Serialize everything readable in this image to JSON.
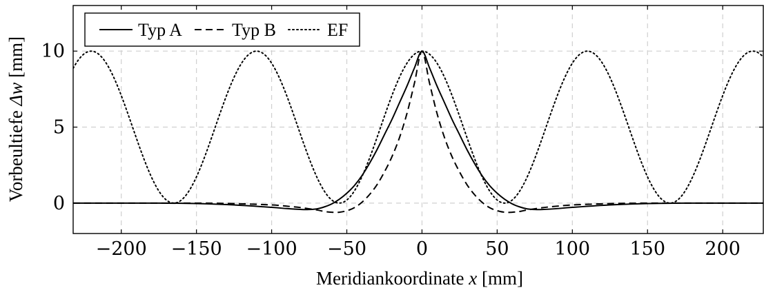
{
  "chart_data": {
    "type": "line",
    "xlabel_text": "Meridiankoordinate ",
    "xlabel_var": "x",
    "xlabel_unit": " [mm]",
    "ylabel_text": "Vorbeultiefe ",
    "ylabel_var": "Δw",
    "ylabel_unit": " [mm]",
    "xlim": [
      -232,
      227
    ],
    "ylim": [
      -2,
      13
    ],
    "x_ticks": [
      -200,
      -150,
      -100,
      -50,
      0,
      50,
      100,
      150,
      200
    ],
    "x_tick_labels": [
      "−200",
      "−150",
      "−100",
      "−50",
      "0",
      "50",
      "100",
      "150",
      "200"
    ],
    "y_ticks": [
      0,
      5,
      10
    ],
    "y_tick_labels": [
      "0",
      "5",
      "10"
    ],
    "grid": true,
    "legend_position": "top-left",
    "series": [
      {
        "name": "Typ A",
        "style": "solid",
        "points": [
          [
            -232,
            0
          ],
          [
            -200,
            0
          ],
          [
            -175,
            0
          ],
          [
            -150,
            -0.03
          ],
          [
            -125,
            -0.12
          ],
          [
            -100,
            -0.28
          ],
          [
            -90,
            -0.36
          ],
          [
            -80,
            -0.42
          ],
          [
            -75,
            -0.42
          ],
          [
            -70,
            -0.38
          ],
          [
            -65,
            -0.25
          ],
          [
            -60,
            -0.05
          ],
          [
            -55,
            0.25
          ],
          [
            -50,
            0.65
          ],
          [
            -45,
            1.15
          ],
          [
            -40,
            1.8
          ],
          [
            -35,
            2.6
          ],
          [
            -30,
            3.5
          ],
          [
            -25,
            4.5
          ],
          [
            -20,
            5.5
          ],
          [
            -15,
            6.6
          ],
          [
            -10,
            7.7
          ],
          [
            -5,
            8.9
          ],
          [
            0,
            10
          ],
          [
            5,
            8.9
          ],
          [
            10,
            7.7
          ],
          [
            15,
            6.6
          ],
          [
            20,
            5.5
          ],
          [
            25,
            4.5
          ],
          [
            30,
            3.5
          ],
          [
            35,
            2.6
          ],
          [
            40,
            1.8
          ],
          [
            45,
            1.15
          ],
          [
            50,
            0.65
          ],
          [
            55,
            0.25
          ],
          [
            60,
            -0.05
          ],
          [
            65,
            -0.25
          ],
          [
            70,
            -0.38
          ],
          [
            75,
            -0.42
          ],
          [
            80,
            -0.42
          ],
          [
            90,
            -0.36
          ],
          [
            100,
            -0.28
          ],
          [
            125,
            -0.12
          ],
          [
            150,
            -0.03
          ],
          [
            175,
            0
          ],
          [
            200,
            0
          ],
          [
            227,
            0
          ]
        ]
      },
      {
        "name": "Typ B",
        "style": "dashed",
        "points": [
          [
            -232,
            0
          ],
          [
            -200,
            0
          ],
          [
            -150,
            0
          ],
          [
            -125,
            -0.03
          ],
          [
            -100,
            -0.12
          ],
          [
            -90,
            -0.2
          ],
          [
            -80,
            -0.3
          ],
          [
            -70,
            -0.45
          ],
          [
            -65,
            -0.55
          ],
          [
            -60,
            -0.6
          ],
          [
            -55,
            -0.6
          ],
          [
            -50,
            -0.5
          ],
          [
            -45,
            -0.3
          ],
          [
            -40,
            0.05
          ],
          [
            -35,
            0.55
          ],
          [
            -30,
            1.2
          ],
          [
            -25,
            2.05
          ],
          [
            -20,
            3.05
          ],
          [
            -15,
            4.3
          ],
          [
            -10,
            5.9
          ],
          [
            -5,
            7.9
          ],
          [
            0,
            10
          ],
          [
            5,
            7.9
          ],
          [
            10,
            5.9
          ],
          [
            15,
            4.3
          ],
          [
            20,
            3.05
          ],
          [
            25,
            2.05
          ],
          [
            30,
            1.2
          ],
          [
            35,
            0.55
          ],
          [
            40,
            0.05
          ],
          [
            45,
            -0.3
          ],
          [
            50,
            -0.5
          ],
          [
            55,
            -0.6
          ],
          [
            60,
            -0.6
          ],
          [
            65,
            -0.55
          ],
          [
            70,
            -0.45
          ],
          [
            80,
            -0.3
          ],
          [
            90,
            -0.2
          ],
          [
            100,
            -0.12
          ],
          [
            125,
            -0.03
          ],
          [
            150,
            0
          ],
          [
            200,
            0
          ],
          [
            227,
            0
          ]
        ]
      },
      {
        "name": "EF",
        "style": "dotted",
        "function": "5*(1+cos(2*pi*x/110))",
        "period": 110,
        "amplitude": 10
      }
    ]
  }
}
